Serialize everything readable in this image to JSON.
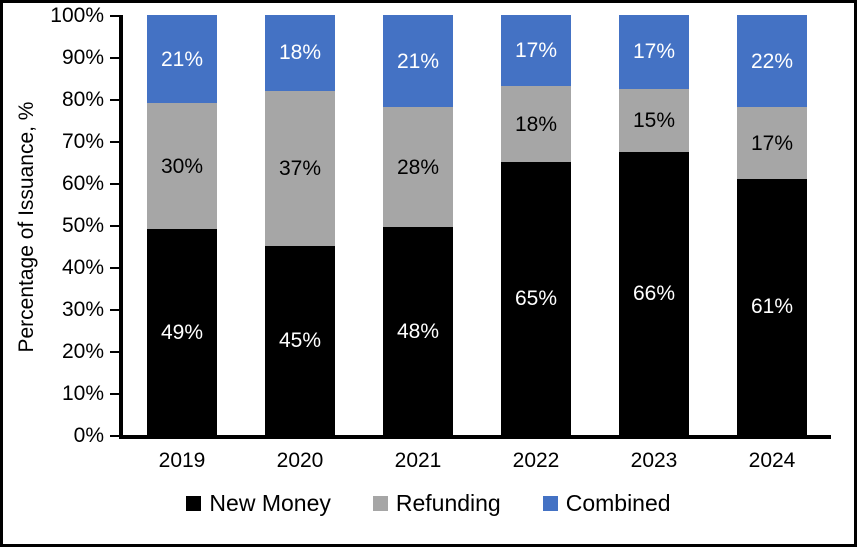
{
  "figure": {
    "background": "#ffffff",
    "border_color": "#000000"
  },
  "chart_data": {
    "type": "bar",
    "subtype": "stacked-percentage",
    "title": "",
    "xlabel": "",
    "ylabel": "Percentage of Issuance, %",
    "ylim": [
      0,
      100
    ],
    "ytick_step": 10,
    "ytick_labels": [
      "0%",
      "10%",
      "20%",
      "30%",
      "40%",
      "50%",
      "60%",
      "70%",
      "80%",
      "90%",
      "100%"
    ],
    "grid": false,
    "legend_position": "bottom",
    "categories": [
      "2019",
      "2020",
      "2021",
      "2022",
      "2023",
      "2024"
    ],
    "series": [
      {
        "name": "New Money",
        "color": "#000000",
        "label_color": "#ffffff",
        "values": [
          49,
          45,
          48,
          65,
          66,
          61
        ],
        "render_heights": [
          49,
          45,
          49.5,
          65,
          67.5,
          61
        ]
      },
      {
        "name": "Refunding",
        "color": "#A6A6A6",
        "label_color": "#000000",
        "values": [
          30,
          37,
          28,
          18,
          15,
          17
        ],
        "render_heights": [
          30,
          37,
          28.5,
          18,
          15,
          17
        ]
      },
      {
        "name": "Combined",
        "color": "#4472C4",
        "label_color": "#ffffff",
        "values": [
          21,
          18,
          21,
          17,
          17,
          22
        ],
        "render_heights": [
          21,
          18,
          22,
          17,
          17.5,
          22
        ]
      }
    ],
    "value_suffix": "%"
  }
}
